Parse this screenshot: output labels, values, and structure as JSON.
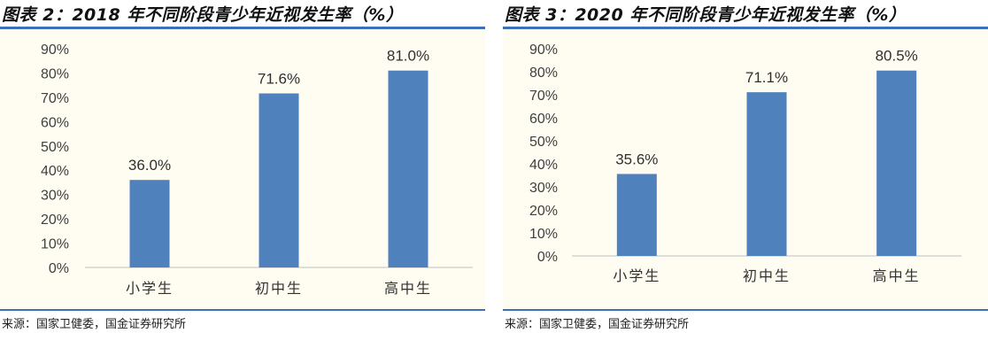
{
  "colors": {
    "bar": "#4f81bd",
    "rule": "#3f6fb6",
    "plot_background": "#fffcf2"
  },
  "panels": [
    {
      "title": "图表 2：2018 年不同阶段青少年近视发生率（%）",
      "source": "来源：国家卫健委，国金证券研究所"
    },
    {
      "title": "图表 3：2020 年不同阶段青少年近视发生率（%）",
      "source": "来源：国家卫健委，国金证券研究所"
    }
  ],
  "chart_data": [
    {
      "type": "bar",
      "title": "图表 2：2018 年不同阶段青少年近视发生率（%）",
      "categories": [
        "小学生",
        "初中生",
        "高中生"
      ],
      "values": [
        36.0,
        71.6,
        81.0
      ],
      "data_labels": [
        "36.0%",
        "71.6%",
        "81.0%"
      ],
      "yticks": [
        "0%",
        "10%",
        "20%",
        "30%",
        "40%",
        "50%",
        "60%",
        "70%",
        "80%",
        "90%"
      ],
      "ylim": [
        0,
        90
      ],
      "xlabel": "",
      "ylabel": "",
      "grid": false,
      "legend": false
    },
    {
      "type": "bar",
      "title": "图表 3：2020 年不同阶段青少年近视发生率（%）",
      "categories": [
        "小学生",
        "初中生",
        "高中生"
      ],
      "values": [
        35.6,
        71.1,
        80.5
      ],
      "data_labels": [
        "35.6%",
        "71.1%",
        "80.5%"
      ],
      "yticks": [
        "0%",
        "10%",
        "20%",
        "30%",
        "40%",
        "50%",
        "60%",
        "70%",
        "80%",
        "90%"
      ],
      "ylim": [
        0,
        90
      ],
      "xlabel": "",
      "ylabel": "",
      "grid": false,
      "legend": false
    }
  ]
}
